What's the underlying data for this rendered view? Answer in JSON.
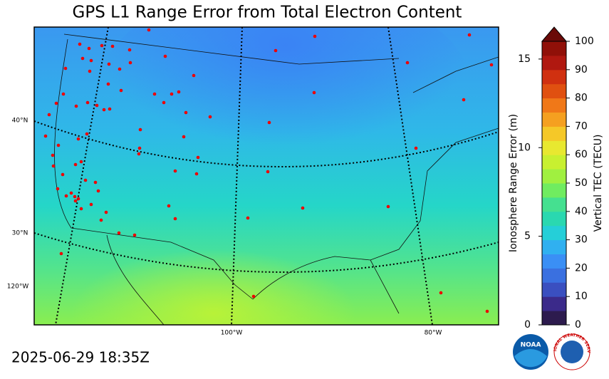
{
  "header": {
    "title": "GPS L1 Range Error from Total Electron Content"
  },
  "map": {
    "graticule_labels": [
      "40°N",
      "30°N",
      "120°W",
      "100°W",
      "80°W"
    ]
  },
  "colorbar": {
    "label_left": "Ionosphere Range Error (m)",
    "label_right": "Vertical TEC (TECU)",
    "left_lim": [
      0,
      16
    ],
    "left_ticks": [
      0,
      5,
      10,
      15
    ],
    "right_lim": [
      0,
      100
    ],
    "right_ticks": [
      0,
      10,
      20,
      30,
      40,
      50,
      60,
      70,
      80,
      90,
      100
    ],
    "colors": [
      "#2d1b4e",
      "#3b2a8a",
      "#3a4fc0",
      "#3a70e0",
      "#3a8ff5",
      "#30b0f0",
      "#25cfd8",
      "#2ad8b0",
      "#45e090",
      "#70ec60",
      "#a0f040",
      "#c8f030",
      "#e8e830",
      "#f5c828",
      "#f5a020",
      "#f07818",
      "#e05010",
      "#d03010",
      "#b01810",
      "#901008"
    ],
    "extend_color": "#6a0a08"
  },
  "timestamp": "2025-06-29 18:35Z",
  "logos": {
    "noaa": "NOAA",
    "nws": "NATIONAL WEATHER SERVICE"
  }
}
